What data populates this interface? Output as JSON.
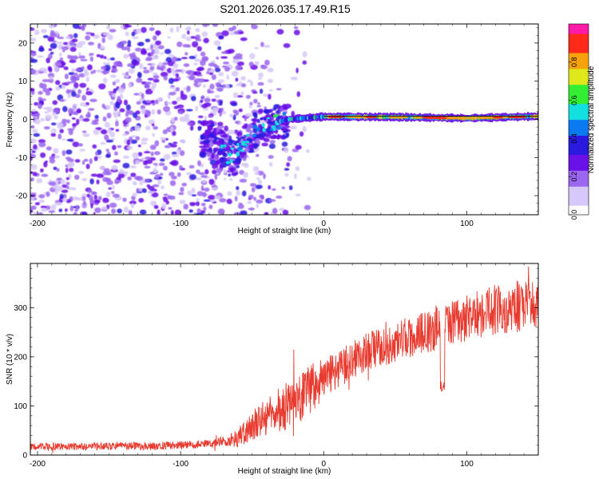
{
  "title": "S201.2026.035.17.49.R15",
  "colors": {
    "trace": "#e83a2e",
    "axis": "#000000",
    "colormap": [
      "#ffffff",
      "#d6c8f8",
      "#9b66f0",
      "#6a10e8",
      "#2a1ae0",
      "#0a7af0",
      "#12e0e0",
      "#33ee33",
      "#dfe81a",
      "#f6a20a",
      "#ff2a1a",
      "#ff1aa8"
    ],
    "ridge": "#000000"
  },
  "chart_data": [
    {
      "type": "heatmap",
      "title": "S201.2026.035.17.49.R15",
      "xlabel": "Height of straight line (km)",
      "ylabel": "Frequency (Hz)",
      "xlim": [
        -205,
        150
      ],
      "ylim": [
        -25,
        25
      ],
      "x_ticks": [
        -200,
        -100,
        0,
        100
      ],
      "y_ticks": [
        -20,
        -10,
        0,
        10,
        20
      ],
      "colorbar": {
        "label": "Normalized spectral amplitude",
        "range": [
          0,
          1
        ],
        "ticks": [
          "0.0",
          "0.2",
          "0.4",
          "0.6",
          "0.8"
        ]
      },
      "features": {
        "noise_region_x": [
          -205,
          -10
        ],
        "ridge_path": [
          [
            -80,
            -5
          ],
          [
            -65,
            -10
          ],
          [
            -55,
            -6
          ],
          [
            -45,
            -2
          ],
          [
            -35,
            -1
          ],
          [
            -25,
            0
          ],
          [
            0,
            0.7
          ],
          [
            50,
            0.6
          ],
          [
            100,
            0.3
          ],
          [
            150,
            0.8
          ]
        ],
        "solid_ridge_line_from_x": 0
      }
    },
    {
      "type": "line",
      "xlabel": "Height of straight line (km)",
      "ylabel": "SNR (10 * v/v)",
      "xlim": [
        -205,
        150
      ],
      "ylim": [
        0,
        390
      ],
      "x_ticks": [
        -200,
        -100,
        0,
        100
      ],
      "y_ticks": [
        0,
        100,
        200,
        300
      ],
      "trend": [
        [
          -205,
          17
        ],
        [
          -120,
          18
        ],
        [
          -80,
          22
        ],
        [
          -60,
          35
        ],
        [
          -45,
          70
        ],
        [
          -30,
          95
        ],
        [
          -15,
          120
        ],
        [
          0,
          160
        ],
        [
          15,
          185
        ],
        [
          30,
          210
        ],
        [
          50,
          230
        ],
        [
          75,
          250
        ],
        [
          80,
          265
        ],
        [
          100,
          280
        ],
        [
          125,
          300
        ],
        [
          150,
          305
        ]
      ],
      "noise_amplitude": [
        [
          -205,
          7
        ],
        [
          -70,
          9
        ],
        [
          -50,
          30
        ],
        [
          -20,
          55
        ],
        [
          20,
          38
        ],
        [
          75,
          45
        ],
        [
          150,
          55
        ]
      ],
      "dip": {
        "x": 83,
        "y": 130
      }
    }
  ]
}
